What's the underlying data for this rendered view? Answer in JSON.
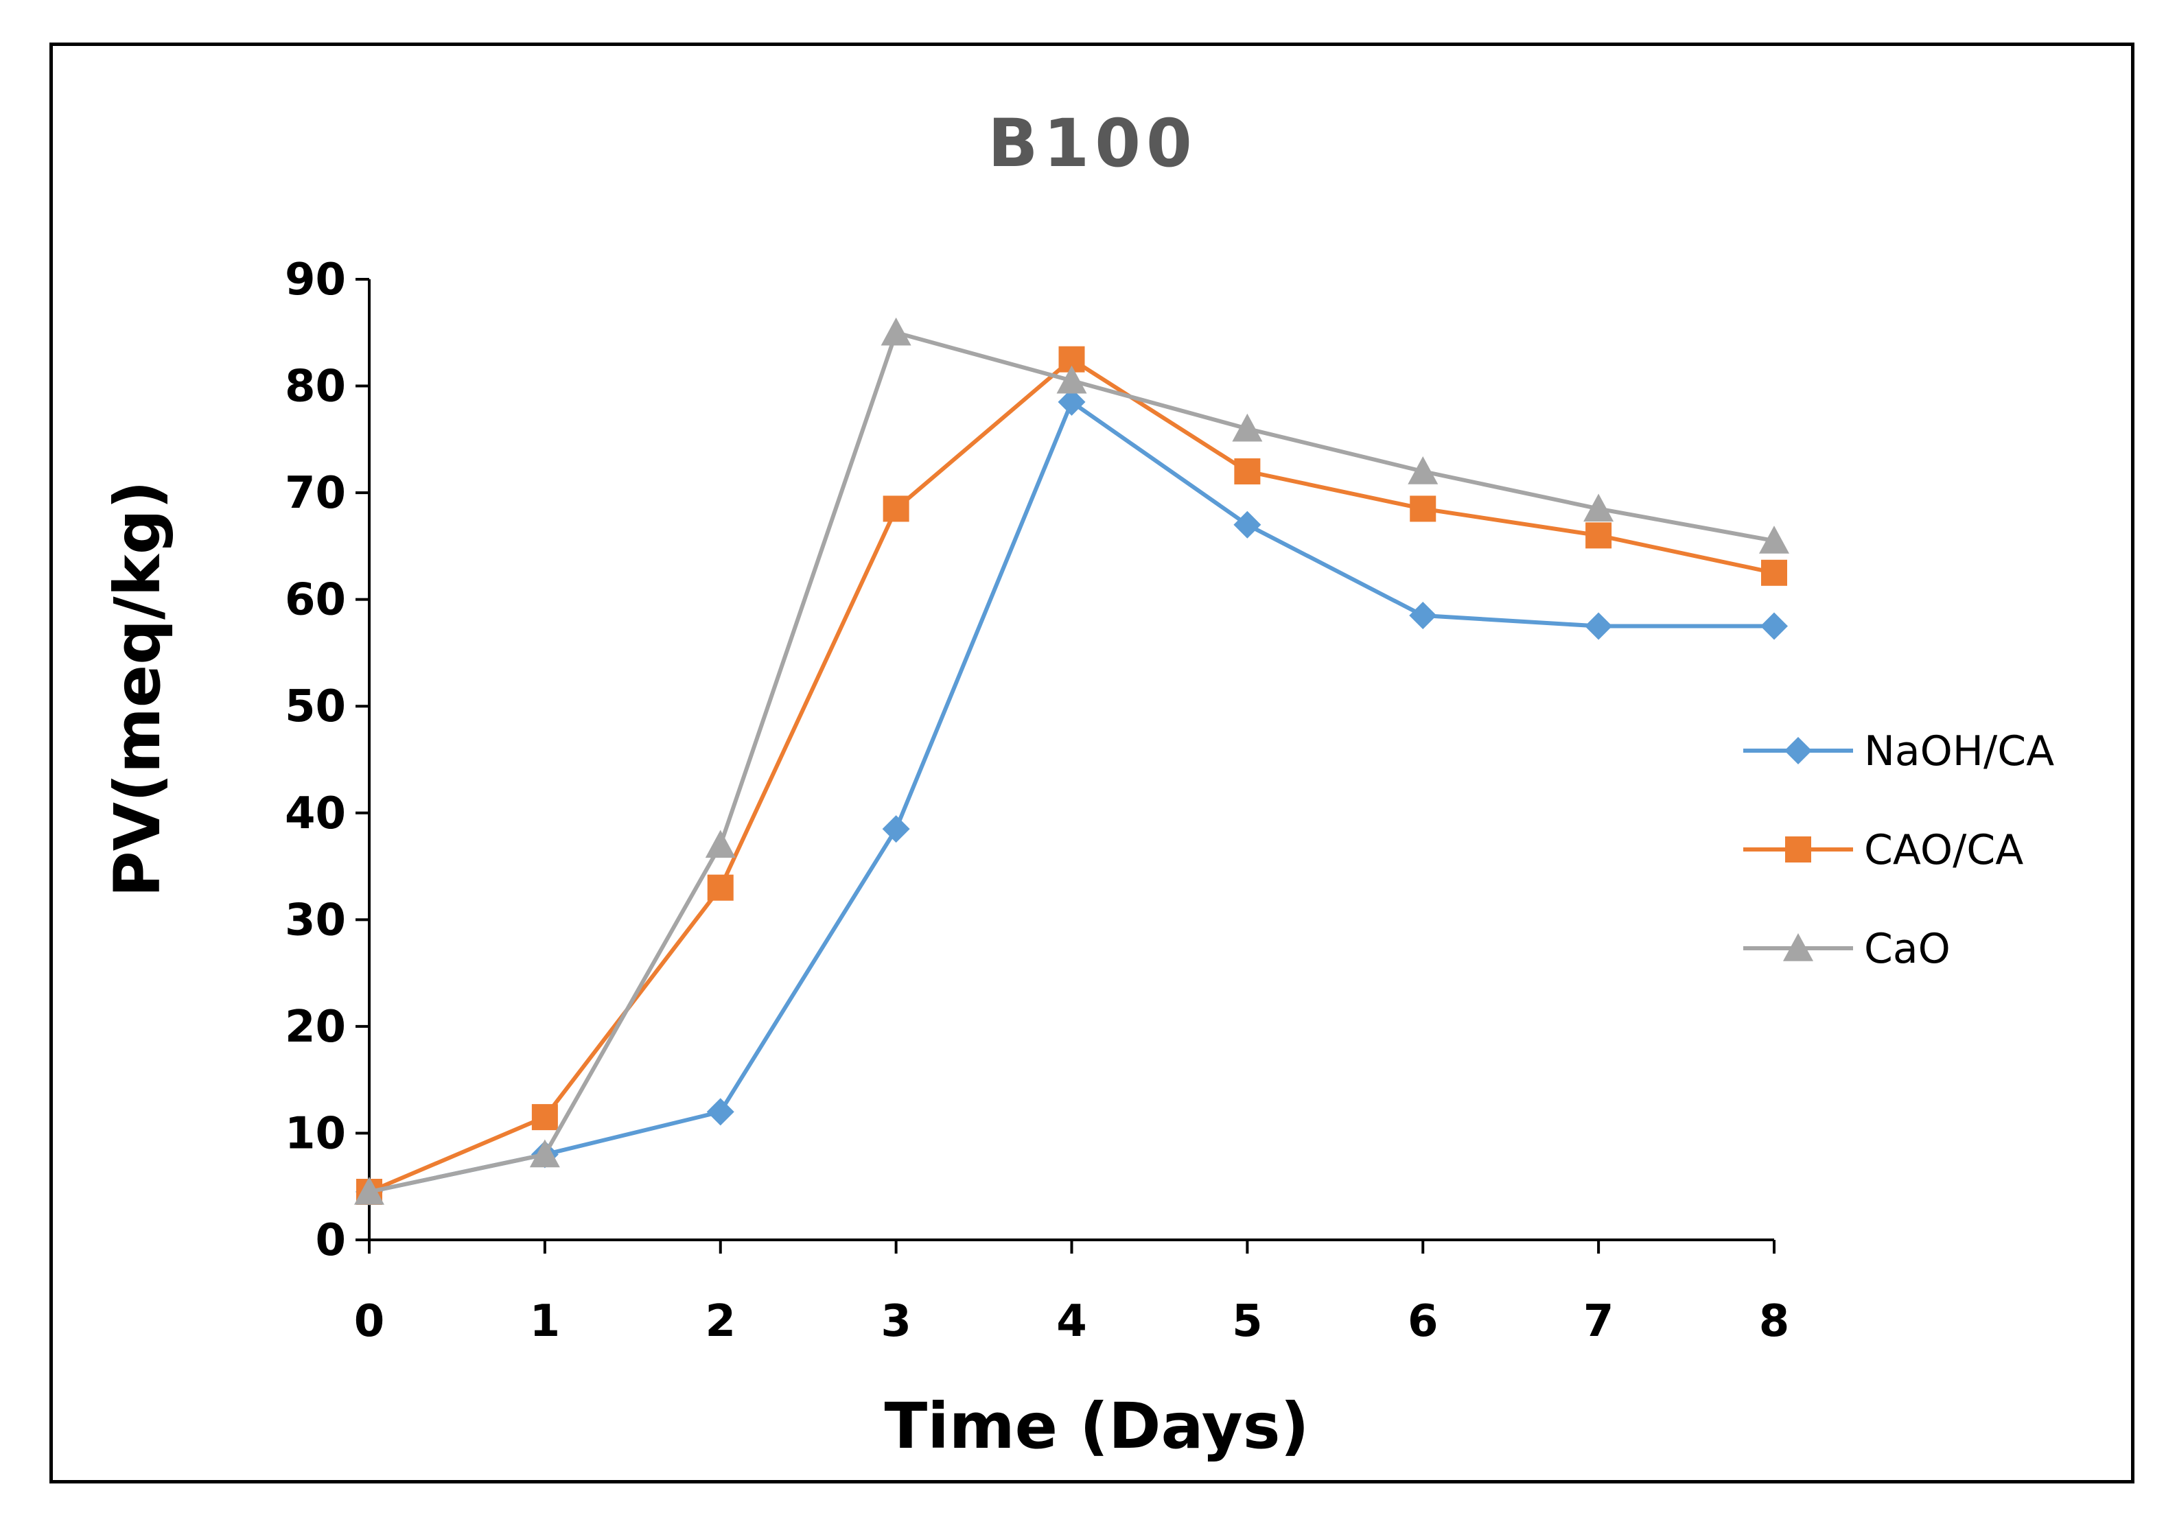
{
  "chart_data": {
    "type": "line",
    "title": "B100",
    "xlabel": "Time (Days)",
    "ylabel": "PV(meq/kg)",
    "x": [
      0,
      1,
      2,
      3,
      4,
      5,
      6,
      7,
      8
    ],
    "xlim": [
      0,
      8
    ],
    "ylim": [
      0,
      90
    ],
    "yticks": [
      0,
      10,
      20,
      30,
      40,
      50,
      60,
      70,
      80,
      90
    ],
    "xticks": [
      0,
      1,
      2,
      3,
      4,
      5,
      6,
      7,
      8
    ],
    "grid": false,
    "legend_position": "right",
    "series": [
      {
        "name": "NaOH/CA",
        "color": "#5B9BD5",
        "marker": "diamond",
        "values": [
          4.5,
          8,
          12,
          38.5,
          78.5,
          67,
          58.5,
          57.5,
          57.5
        ]
      },
      {
        "name": "CAO/CA",
        "color": "#ED7D31",
        "marker": "square",
        "values": [
          4.5,
          11.5,
          33,
          68.5,
          82.5,
          72,
          68.5,
          66,
          62.5
        ]
      },
      {
        "name": "CaO",
        "color": "#A5A5A5",
        "marker": "triangle",
        "values": [
          4.5,
          8,
          37,
          85,
          80.5,
          76,
          72,
          68.5,
          65.5
        ]
      }
    ]
  }
}
